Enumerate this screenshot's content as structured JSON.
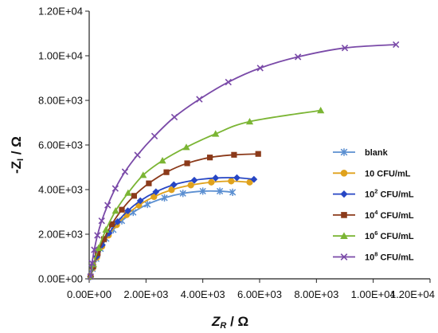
{
  "chart_data": {
    "type": "line",
    "x_axis": {
      "label_main": "Z",
      "label_sub": "R",
      "label_unit": " / Ω",
      "range": [
        0,
        12000
      ],
      "ticks": [
        {
          "value": 0,
          "label": "0.00E+00"
        },
        {
          "value": 2000,
          "label": "2.00E+03"
        },
        {
          "value": 4000,
          "label": "4.00E+03"
        },
        {
          "value": 6000,
          "label": "6.00E+03"
        },
        {
          "value": 8000,
          "label": "8.00E+03"
        },
        {
          "value": 10000,
          "label": "1.00E+04"
        },
        {
          "value": 12000,
          "label": "1.20E+04"
        }
      ]
    },
    "y_axis": {
      "label_main": "-Z",
      "label_sub": "I",
      "label_unit": " / Ω",
      "range": [
        0,
        12000
      ],
      "ticks": [
        {
          "value": 0,
          "label": "0.00E+00"
        },
        {
          "value": 2000,
          "label": "2.00E+03"
        },
        {
          "value": 4000,
          "label": "4.00E+03"
        },
        {
          "value": 6000,
          "label": "6.00E+03"
        },
        {
          "value": 8000,
          "label": "8.00E+03"
        },
        {
          "value": 10000,
          "label": "1.00E+04"
        },
        {
          "value": 12000,
          "label": "1.20E+04"
        }
      ]
    },
    "grid": false,
    "legend_position": "right",
    "series": [
      {
        "name": "blank",
        "legend_base": "blank",
        "legend_sup": "",
        "legend_tail": "",
        "color": "#5b8fd1",
        "marker": "star",
        "x": [
          50,
          120,
          250,
          400,
          600,
          850,
          1150,
          1550,
          2050,
          2650,
          3300,
          4000,
          4600,
          5050
        ],
        "y": [
          100,
          450,
          900,
          1350,
          1800,
          2200,
          2600,
          2980,
          3340,
          3630,
          3830,
          3930,
          3930,
          3880
        ]
      },
      {
        "name": "10  CFU/mL",
        "legend_base": "10  CFU/mL",
        "legend_sup": "",
        "legend_tail": "",
        "color": "#e0a21c",
        "marker": "circle",
        "x": [
          50,
          130,
          270,
          450,
          680,
          970,
          1320,
          1750,
          2280,
          2900,
          3580,
          4300,
          5000,
          5650
        ],
        "y": [
          100,
          480,
          960,
          1450,
          1950,
          2420,
          2870,
          3300,
          3680,
          3990,
          4200,
          4330,
          4380,
          4330
        ]
      },
      {
        "name": "10^2 CFU/mL",
        "legend_base": "10",
        "legend_sup": "2",
        "legend_tail": " CFU/mL",
        "color": "#2746c4",
        "marker": "diamond",
        "x": [
          50,
          130,
          270,
          460,
          700,
          1000,
          1360,
          1800,
          2350,
          2980,
          3700,
          4450,
          5200,
          5800
        ],
        "y": [
          100,
          500,
          1000,
          1520,
          2050,
          2560,
          3050,
          3500,
          3900,
          4220,
          4420,
          4520,
          4530,
          4460
        ]
      },
      {
        "name": "10^4 CFU/mL",
        "legend_base": "10",
        "legend_sup": "4",
        "legend_tail": " CFU/mL",
        "color": "#8b3a1a",
        "marker": "square",
        "x": [
          50,
          140,
          300,
          520,
          800,
          1150,
          1580,
          2100,
          2720,
          3450,
          4250,
          5100,
          5950
        ],
        "y": [
          100,
          560,
          1150,
          1780,
          2450,
          3100,
          3720,
          4280,
          4780,
          5180,
          5440,
          5560,
          5600
        ]
      },
      {
        "name": "10^6 CFU/mL",
        "legend_base": "10",
        "legend_sup": "6",
        "legend_tail": " CFU/mL",
        "color": "#7bb534",
        "marker": "triangle",
        "x": [
          50,
          150,
          330,
          590,
          930,
          1370,
          1900,
          2580,
          3420,
          4450,
          5650,
          8150
        ],
        "y": [
          100,
          650,
          1380,
          2200,
          3050,
          3850,
          4650,
          5300,
          5900,
          6500,
          7050,
          7550
        ]
      },
      {
        "name": "10^8 CFU/mL",
        "legend_base": "10",
        "legend_sup": "8",
        "legend_tail": " CFU/mL",
        "color": "#7a4aa8",
        "marker": "x",
        "x": [
          50,
          100,
          180,
          290,
          440,
          650,
          920,
          1260,
          1700,
          2300,
          3000,
          3880,
          4900,
          6020,
          7350,
          9000,
          10800
        ],
        "y": [
          100,
          700,
          1300,
          1950,
          2600,
          3300,
          4050,
          4800,
          5550,
          6400,
          7250,
          8050,
          8820,
          9450,
          9950,
          10350,
          10500
        ]
      }
    ]
  }
}
